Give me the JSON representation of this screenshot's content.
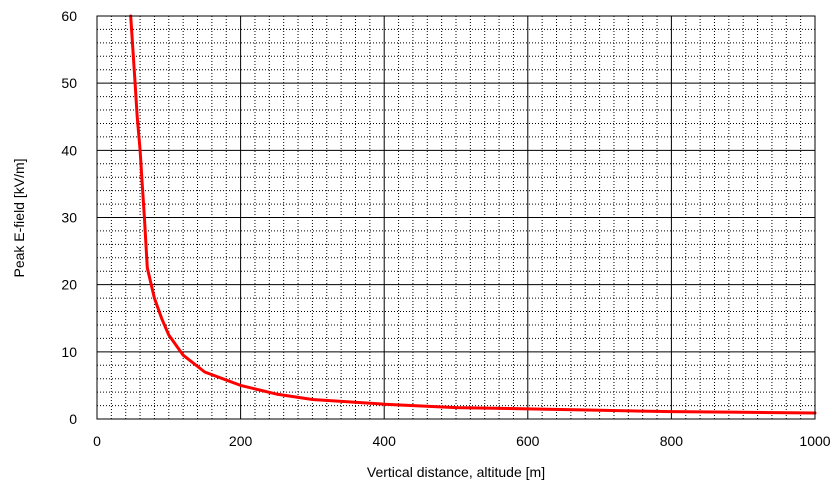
{
  "chart_data": {
    "type": "line",
    "title": "",
    "xlabel": "Vertical distance, altitude [m]",
    "ylabel": "Peak E-field [kV/m]",
    "xlim": [
      0,
      1000
    ],
    "ylim": [
      0,
      60
    ],
    "x_ticks": [
      "0",
      "200",
      "400",
      "600",
      "800",
      "1000"
    ],
    "y_ticks": [
      "0",
      "10",
      "20",
      "30",
      "40",
      "50",
      "60"
    ],
    "grid": true,
    "legend": "none",
    "series": [
      {
        "color": "#ff0000",
        "x": [
          47,
          50,
          53,
          56,
          60,
          63,
          66,
          70,
          80,
          90,
          100,
          120,
          150,
          200,
          250,
          300,
          400,
          500,
          600,
          700,
          800,
          900,
          1000
        ],
        "y": [
          60,
          55,
          50,
          45,
          40,
          35,
          30,
          22.5,
          18,
          15,
          12.5,
          9.5,
          7,
          5,
          3.7,
          2.9,
          2.2,
          1.7,
          1.5,
          1.3,
          1.1,
          1.0,
          0.9
        ]
      }
    ]
  }
}
